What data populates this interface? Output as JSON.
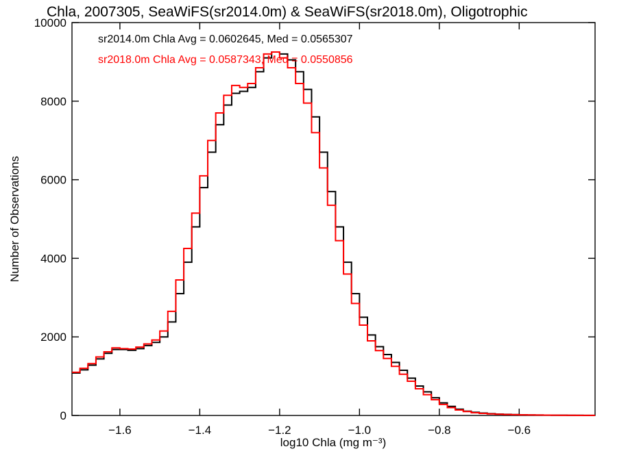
{
  "chart_data": {
    "type": "histogram-step",
    "title": "Chla, 2007305, SeaWiFS(sr2014.0m) & SeaWiFS(sr2018.0m), Oligotrophic",
    "xlabel": "log10 Chla (mg m⁻³)",
    "ylabel": "Number of Observations",
    "xlim": [
      -1.72,
      -0.41
    ],
    "ylim": [
      0,
      10000
    ],
    "x_ticks": [
      -1.6,
      -1.4,
      -1.2,
      -1.0,
      -0.8,
      -0.6
    ],
    "x_tick_labels": [
      "−1.6",
      "−1.4",
      "−1.2",
      "−1.0",
      "−0.8",
      "−0.6"
    ],
    "y_ticks": [
      0,
      2000,
      4000,
      6000,
      8000,
      10000
    ],
    "y_tick_labels": [
      "0",
      "2000",
      "4000",
      "6000",
      "8000",
      "10000"
    ],
    "annotations": [
      {
        "text": "sr2014.0m Chla Avg = 0.0602645, Med = 0.0565307",
        "color": "#000000"
      },
      {
        "text": "sr2018.0m Chla Avg = 0.0587343, Med = 0.0550856",
        "color": "#ff0000"
      }
    ],
    "series": [
      {
        "color": "#000000",
        "points": [
          [
            -1.72,
            1080
          ],
          [
            -1.7,
            1160
          ],
          [
            -1.68,
            1280
          ],
          [
            -1.66,
            1440
          ],
          [
            -1.64,
            1580
          ],
          [
            -1.62,
            1680
          ],
          [
            -1.6,
            1680
          ],
          [
            -1.58,
            1660
          ],
          [
            -1.56,
            1700
          ],
          [
            -1.54,
            1780
          ],
          [
            -1.52,
            1860
          ],
          [
            -1.5,
            2000
          ],
          [
            -1.48,
            2380
          ],
          [
            -1.46,
            3100
          ],
          [
            -1.44,
            3900
          ],
          [
            -1.42,
            4800
          ],
          [
            -1.4,
            5800
          ],
          [
            -1.38,
            6700
          ],
          [
            -1.36,
            7400
          ],
          [
            -1.34,
            7900
          ],
          [
            -1.32,
            8200
          ],
          [
            -1.3,
            8250
          ],
          [
            -1.28,
            8350
          ],
          [
            -1.26,
            8750
          ],
          [
            -1.24,
            9100
          ],
          [
            -1.22,
            9250
          ],
          [
            -1.2,
            9200
          ],
          [
            -1.18,
            9050
          ],
          [
            -1.16,
            8750
          ],
          [
            -1.14,
            8300
          ],
          [
            -1.12,
            7600
          ],
          [
            -1.1,
            6700
          ],
          [
            -1.08,
            5700
          ],
          [
            -1.06,
            4800
          ],
          [
            -1.04,
            3900
          ],
          [
            -1.02,
            3100
          ],
          [
            -1.0,
            2500
          ],
          [
            -0.98,
            2050
          ],
          [
            -0.96,
            1750
          ],
          [
            -0.94,
            1550
          ],
          [
            -0.92,
            1350
          ],
          [
            -0.9,
            1150
          ],
          [
            -0.88,
            950
          ],
          [
            -0.86,
            750
          ],
          [
            -0.84,
            600
          ],
          [
            -0.82,
            450
          ],
          [
            -0.8,
            320
          ],
          [
            -0.78,
            230
          ],
          [
            -0.76,
            160
          ],
          [
            -0.74,
            110
          ],
          [
            -0.72,
            80
          ],
          [
            -0.7,
            60
          ],
          [
            -0.68,
            45
          ],
          [
            -0.66,
            35
          ],
          [
            -0.64,
            28
          ],
          [
            -0.62,
            22
          ],
          [
            -0.6,
            18
          ],
          [
            -0.58,
            14
          ],
          [
            -0.56,
            11
          ],
          [
            -0.54,
            9
          ],
          [
            -0.52,
            7
          ],
          [
            -0.5,
            6
          ],
          [
            -0.48,
            5
          ],
          [
            -0.46,
            4
          ],
          [
            -0.44,
            3
          ],
          [
            -0.42,
            2
          ]
        ]
      },
      {
        "color": "#ff0000",
        "points": [
          [
            -1.72,
            1100
          ],
          [
            -1.7,
            1200
          ],
          [
            -1.68,
            1320
          ],
          [
            -1.66,
            1490
          ],
          [
            -1.64,
            1620
          ],
          [
            -1.62,
            1720
          ],
          [
            -1.6,
            1700
          ],
          [
            -1.58,
            1690
          ],
          [
            -1.56,
            1740
          ],
          [
            -1.54,
            1820
          ],
          [
            -1.52,
            1920
          ],
          [
            -1.5,
            2150
          ],
          [
            -1.48,
            2650
          ],
          [
            -1.46,
            3450
          ],
          [
            -1.44,
            4250
          ],
          [
            -1.42,
            5150
          ],
          [
            -1.4,
            6100
          ],
          [
            -1.38,
            7000
          ],
          [
            -1.36,
            7700
          ],
          [
            -1.34,
            8150
          ],
          [
            -1.32,
            8400
          ],
          [
            -1.3,
            8350
          ],
          [
            -1.28,
            8450
          ],
          [
            -1.26,
            8850
          ],
          [
            -1.24,
            9200
          ],
          [
            -1.22,
            9250
          ],
          [
            -1.2,
            9100
          ],
          [
            -1.18,
            8850
          ],
          [
            -1.16,
            8450
          ],
          [
            -1.14,
            7950
          ],
          [
            -1.12,
            7200
          ],
          [
            -1.1,
            6300
          ],
          [
            -1.08,
            5350
          ],
          [
            -1.06,
            4450
          ],
          [
            -1.04,
            3600
          ],
          [
            -1.02,
            2850
          ],
          [
            -1.0,
            2300
          ],
          [
            -0.98,
            1900
          ],
          [
            -0.96,
            1650
          ],
          [
            -0.94,
            1450
          ],
          [
            -0.92,
            1250
          ],
          [
            -0.9,
            1050
          ],
          [
            -0.88,
            870
          ],
          [
            -0.86,
            680
          ],
          [
            -0.84,
            530
          ],
          [
            -0.82,
            400
          ],
          [
            -0.8,
            280
          ],
          [
            -0.78,
            200
          ],
          [
            -0.76,
            140
          ],
          [
            -0.74,
            100
          ],
          [
            -0.72,
            70
          ],
          [
            -0.7,
            52
          ],
          [
            -0.68,
            40
          ],
          [
            -0.66,
            30
          ],
          [
            -0.64,
            24
          ],
          [
            -0.62,
            19
          ],
          [
            -0.6,
            15
          ],
          [
            -0.58,
            12
          ],
          [
            -0.56,
            10
          ],
          [
            -0.54,
            8
          ],
          [
            -0.52,
            6
          ],
          [
            -0.5,
            5
          ],
          [
            -0.48,
            4
          ],
          [
            -0.46,
            3
          ],
          [
            -0.44,
            2
          ],
          [
            -0.42,
            2
          ]
        ]
      }
    ]
  }
}
